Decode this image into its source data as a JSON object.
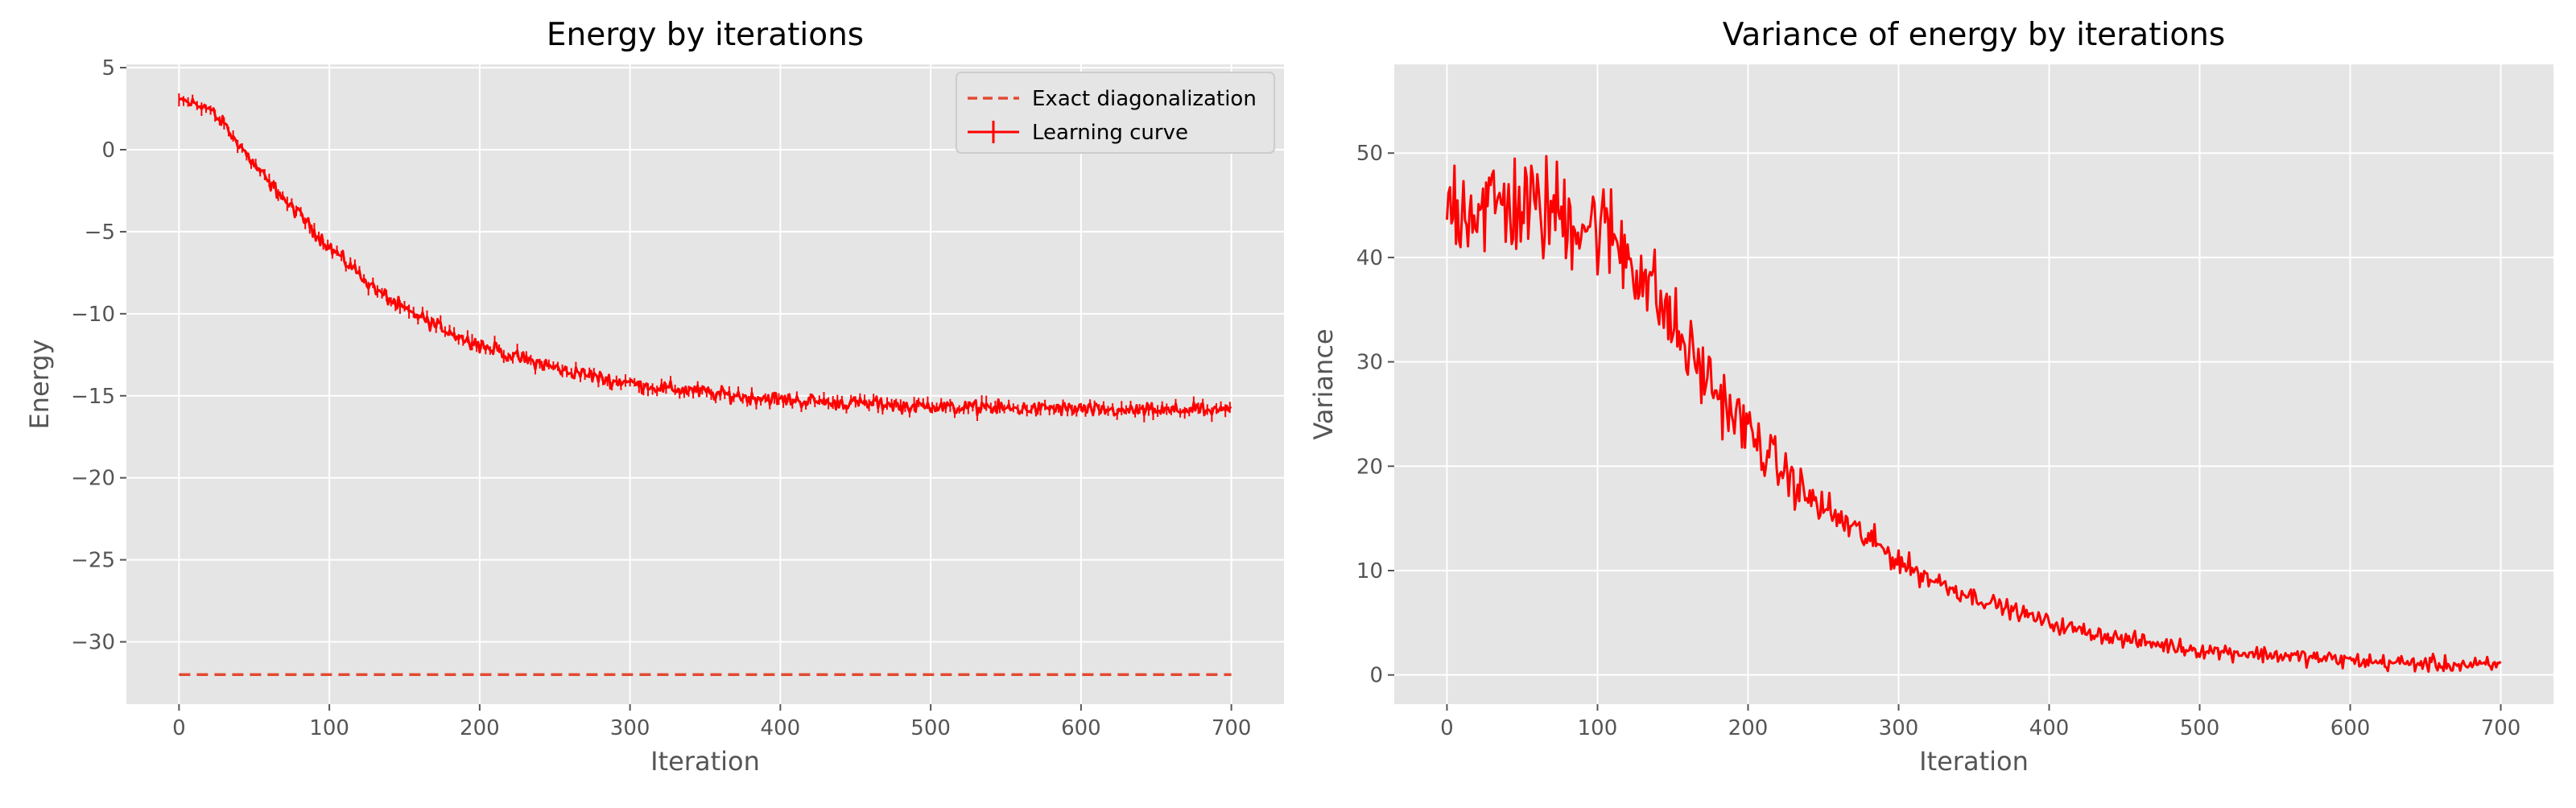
{
  "chart_data": [
    {
      "type": "line",
      "title": "Energy by iterations",
      "xlabel": "Iteration",
      "ylabel": "Energy",
      "xlim": [
        -35,
        735
      ],
      "ylim": [
        -33.8,
        5.2
      ],
      "xticks": [
        0,
        100,
        200,
        300,
        400,
        500,
        600,
        700
      ],
      "xtick_labels": [
        "0",
        "100",
        "200",
        "300",
        "400",
        "500",
        "600",
        "700"
      ],
      "yticks": [
        5,
        0,
        -5,
        -10,
        -15,
        -20,
        -25,
        -30
      ],
      "ytick_labels": [
        "5",
        "0",
        "−5",
        "−10",
        "−15",
        "−20",
        "−25",
        "−30"
      ],
      "grid": true,
      "legend_position": "top-right",
      "series": [
        {
          "name": "Exact diagonalization",
          "style": "dashed",
          "color": "#e24a33",
          "x": [
            0,
            700
          ],
          "y": [
            -32,
            -32
          ]
        },
        {
          "name": "Learning curve",
          "style": "solid-errorbar",
          "color": "#ff0000",
          "noise": 0.35,
          "x": [
            0,
            10,
            20,
            30,
            40,
            50,
            60,
            70,
            80,
            90,
            100,
            110,
            120,
            130,
            140,
            150,
            160,
            170,
            180,
            190,
            200,
            210,
            220,
            230,
            240,
            250,
            260,
            270,
            280,
            290,
            300,
            310,
            320,
            330,
            340,
            350,
            360,
            370,
            380,
            390,
            400,
            410,
            420,
            430,
            440,
            450,
            460,
            470,
            480,
            490,
            500,
            510,
            520,
            530,
            540,
            550,
            560,
            570,
            580,
            590,
            600,
            610,
            620,
            630,
            640,
            650,
            660,
            670,
            680,
            690,
            700
          ],
          "y": [
            3.0,
            2.8,
            2.5,
            1.5,
            0.3,
            -0.9,
            -2.0,
            -3.0,
            -4.0,
            -5.0,
            -5.9,
            -6.8,
            -7.6,
            -8.4,
            -9.1,
            -9.7,
            -10.2,
            -10.7,
            -11.1,
            -11.5,
            -11.9,
            -12.2,
            -12.5,
            -12.8,
            -13.0,
            -13.3,
            -13.5,
            -13.7,
            -13.9,
            -14.1,
            -14.2,
            -14.4,
            -14.5,
            -14.6,
            -14.7,
            -14.8,
            -14.9,
            -15.0,
            -15.1,
            -15.1,
            -15.2,
            -15.3,
            -15.3,
            -15.4,
            -15.4,
            -15.5,
            -15.5,
            -15.5,
            -15.6,
            -15.6,
            -15.6,
            -15.7,
            -15.7,
            -15.7,
            -15.7,
            -15.8,
            -15.8,
            -15.8,
            -15.8,
            -15.8,
            -15.8,
            -15.9,
            -15.9,
            -15.9,
            -15.9,
            -15.9,
            -15.9,
            -15.9,
            -15.9,
            -15.9,
            -15.9
          ]
        }
      ]
    },
    {
      "type": "line",
      "title": "Variance of energy by iterations",
      "xlabel": "Iteration",
      "ylabel": "Variance",
      "xlim": [
        -35,
        735
      ],
      "ylim": [
        -2.8,
        58.5
      ],
      "xticks": [
        0,
        100,
        200,
        300,
        400,
        500,
        600,
        700
      ],
      "xtick_labels": [
        "0",
        "100",
        "200",
        "300",
        "400",
        "500",
        "600",
        "700"
      ],
      "yticks": [
        50,
        40,
        30,
        20,
        10,
        0
      ],
      "ytick_labels": [
        "50",
        "40",
        "30",
        "20",
        "10",
        "0"
      ],
      "grid": true,
      "series": [
        {
          "color": "#ff0000",
          "noise": 4.5,
          "x": [
            0,
            10,
            20,
            30,
            40,
            50,
            60,
            70,
            80,
            90,
            100,
            110,
            120,
            130,
            140,
            150,
            160,
            170,
            180,
            190,
            200,
            210,
            220,
            230,
            240,
            250,
            260,
            270,
            280,
            290,
            300,
            310,
            320,
            330,
            340,
            350,
            360,
            370,
            380,
            390,
            400,
            410,
            420,
            430,
            440,
            450,
            460,
            470,
            480,
            490,
            500,
            510,
            520,
            530,
            540,
            550,
            560,
            570,
            580,
            590,
            600,
            610,
            620,
            630,
            640,
            650,
            660,
            670,
            680,
            690,
            700
          ],
          "y": [
            45.5,
            45.0,
            45.0,
            45.0,
            45.0,
            45.0,
            44.5,
            44.5,
            44.0,
            43.5,
            43.0,
            42.0,
            40.5,
            38.5,
            36.0,
            33.5,
            31.0,
            29.0,
            27.0,
            25.0,
            23.5,
            21.5,
            20.0,
            18.5,
            17.0,
            16.0,
            15.0,
            14.0,
            13.0,
            12.0,
            11.0,
            10.0,
            9.3,
            8.7,
            8.0,
            7.5,
            7.0,
            6.5,
            6.0,
            5.5,
            5.0,
            4.6,
            4.3,
            4.0,
            3.7,
            3.4,
            3.2,
            3.0,
            2.8,
            2.6,
            2.4,
            2.3,
            2.2,
            2.1,
            2.0,
            1.9,
            1.8,
            1.7,
            1.6,
            1.5,
            1.4,
            1.3,
            1.2,
            1.2,
            1.1,
            1.1,
            1.0,
            1.0,
            0.9,
            0.9,
            0.9
          ]
        }
      ]
    }
  ]
}
